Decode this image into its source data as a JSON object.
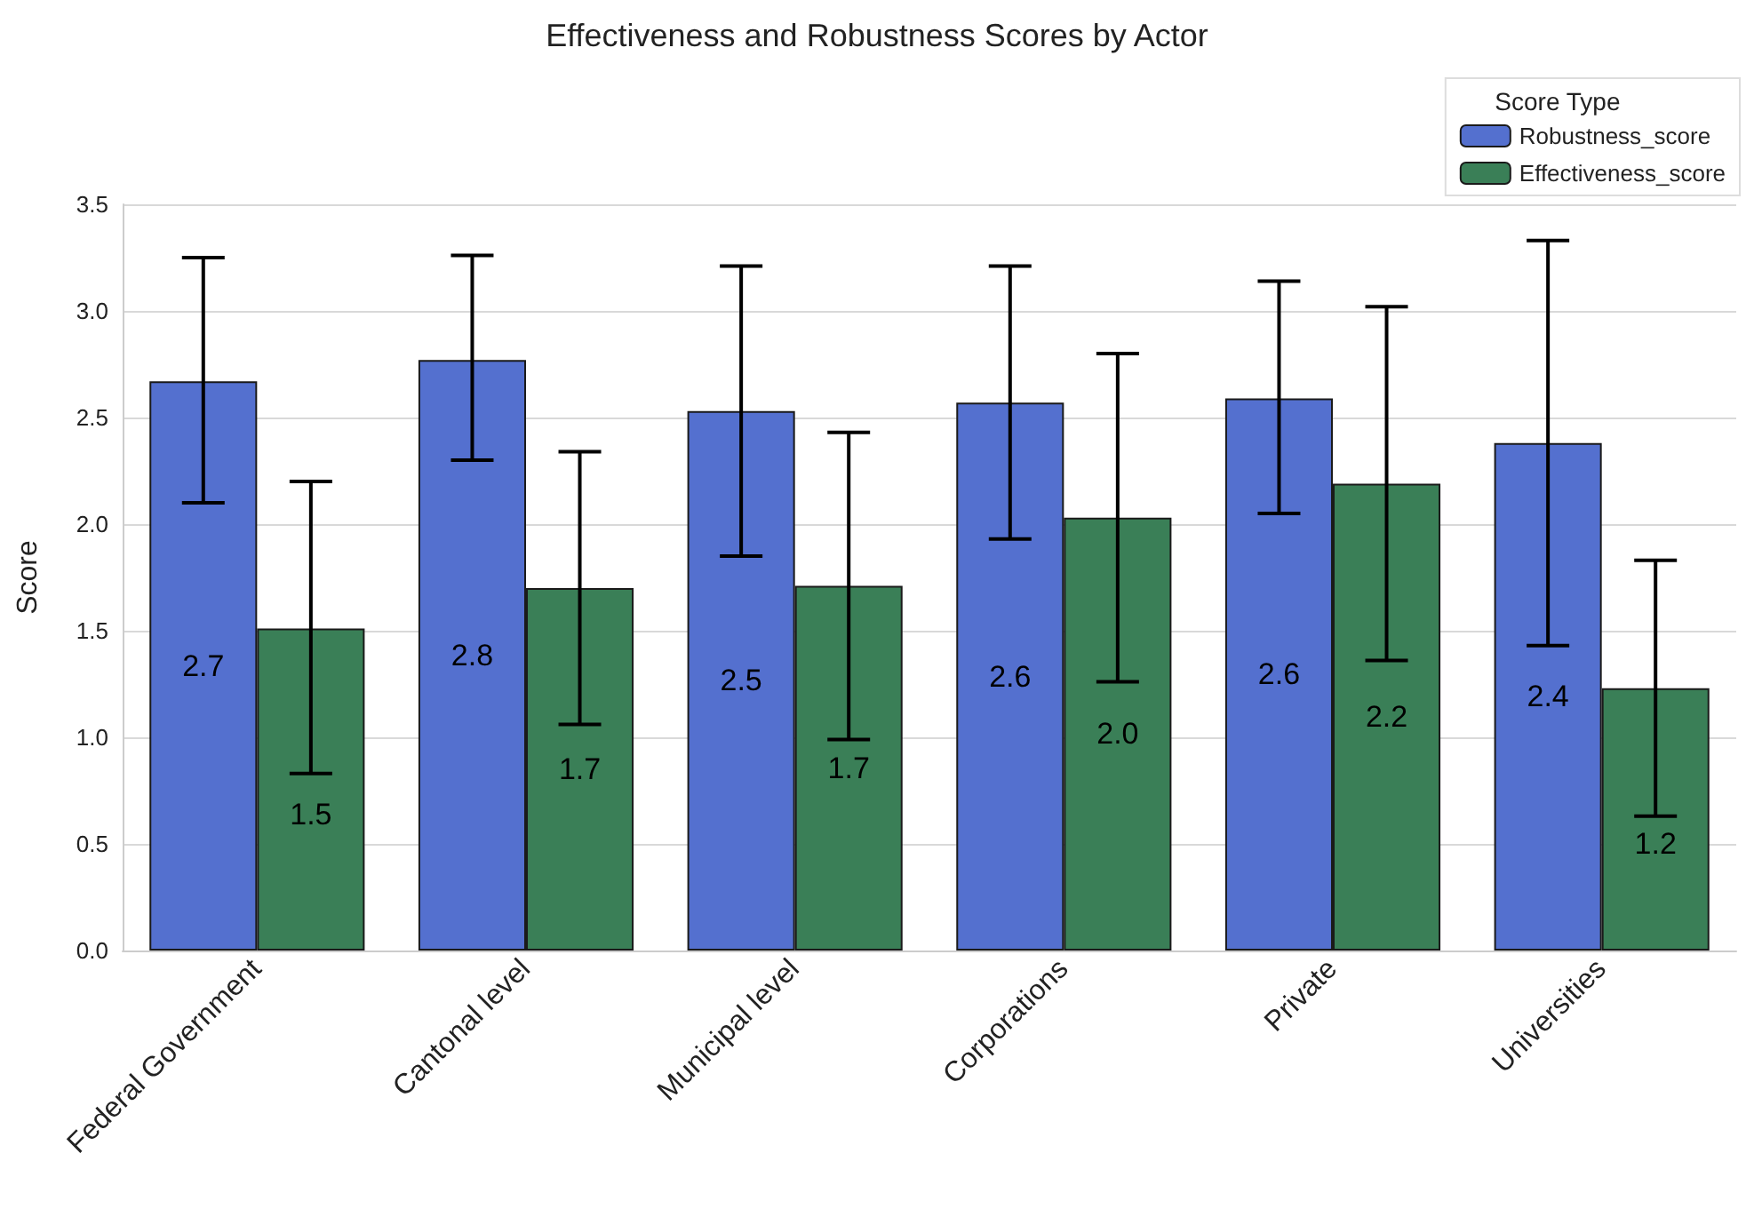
{
  "chart_data": {
    "type": "bar",
    "title": "Effectiveness and Robustness Scores by Actor",
    "ylabel": "Score",
    "legend_title": "Score Type",
    "categories": [
      "Federal Government",
      "Cantonal level",
      "Municipal level",
      "Corporations",
      "Private",
      "Universities"
    ],
    "series": [
      {
        "name": "Robustness_score",
        "color": "#5470cf",
        "values": [
          2.67,
          2.77,
          2.53,
          2.57,
          2.59,
          2.38
        ],
        "errors": [
          [
            2.1,
            3.25
          ],
          [
            2.3,
            3.26
          ],
          [
            1.85,
            3.21
          ],
          [
            1.93,
            3.21
          ],
          [
            2.05,
            3.14
          ],
          [
            1.43,
            3.33
          ]
        ],
        "value_labels": [
          "2.7",
          "2.8",
          "2.5",
          "2.6",
          "2.6",
          "2.4"
        ]
      },
      {
        "name": "Effectiveness_score",
        "color": "#3a7f57",
        "values": [
          1.51,
          1.7,
          1.71,
          2.03,
          2.19,
          1.23
        ],
        "errors": [
          [
            0.83,
            2.2
          ],
          [
            1.06,
            2.34
          ],
          [
            0.99,
            2.43
          ],
          [
            1.26,
            2.8
          ],
          [
            1.36,
            3.02
          ],
          [
            0.63,
            1.83
          ]
        ],
        "value_labels": [
          "1.5",
          "1.7",
          "1.7",
          "2.0",
          "2.2",
          "1.2"
        ]
      }
    ],
    "ylim": [
      0,
      3.5
    ],
    "yticks": [
      {
        "value": 0,
        "label": "0.0"
      },
      0.5,
      {
        "value": 1,
        "label": "1.0"
      },
      1.5,
      {
        "value": 2,
        "label": "2.0"
      },
      2.5,
      {
        "value": 3,
        "label": "3.0"
      },
      3.5
    ],
    "grid": "y",
    "legend": "top right"
  }
}
